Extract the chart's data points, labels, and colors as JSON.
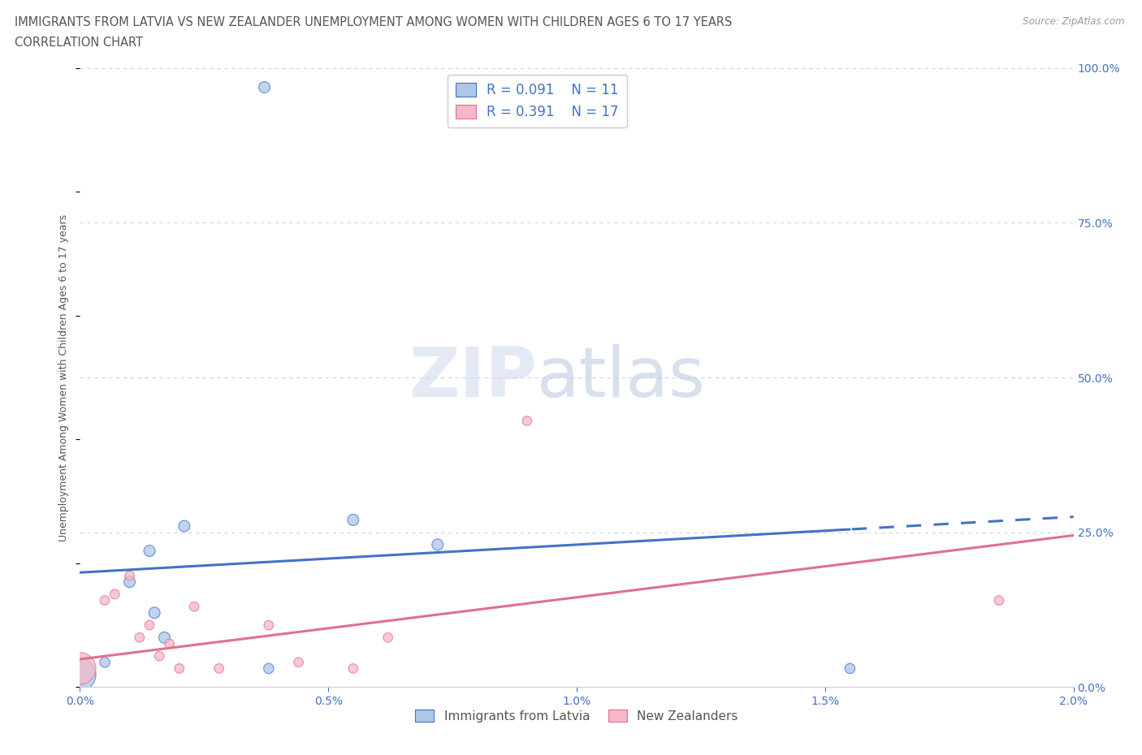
{
  "title_line1": "IMMIGRANTS FROM LATVIA VS NEW ZEALANDER UNEMPLOYMENT AMONG WOMEN WITH CHILDREN AGES 6 TO 17 YEARS",
  "title_line2": "CORRELATION CHART",
  "source": "Source: ZipAtlas.com",
  "ylabel": "Unemployment Among Women with Children Ages 6 to 17 years",
  "ytick_vals": [
    0.0,
    25.0,
    50.0,
    75.0,
    100.0
  ],
  "xlim": [
    0.0,
    2.0
  ],
  "ylim": [
    0.0,
    100.0
  ],
  "blue_fill": "#aec6e8",
  "blue_edge": "#4472c4",
  "pink_fill": "#f4b8c8",
  "pink_edge": "#e07090",
  "blue_R": 0.091,
  "blue_N": 11,
  "pink_R": 0.391,
  "pink_N": 17,
  "legend_label_blue": "Immigrants from Latvia",
  "legend_label_pink": "New Zealanders",
  "watermark_zip": "ZIP",
  "watermark_atlas": "atlas",
  "background_color": "#ffffff",
  "grid_color": "#c8d4e8",
  "axis_label_color": "#4472c4",
  "title_color": "#555555",
  "blue_line_intercept": 18.5,
  "blue_line_slope": 4.5,
  "blue_line_solid_end": 1.55,
  "blue_line_dashed_end": 2.0,
  "pink_line_intercept": 4.5,
  "pink_line_slope": 10.0,
  "pink_line_end": 2.0,
  "blue_pts_x": [
    0.0,
    0.05,
    0.1,
    0.14,
    0.15,
    0.17,
    0.21,
    0.55,
    0.72,
    1.55,
    0.38
  ],
  "blue_pts_y": [
    2.0,
    4.0,
    17.0,
    22.0,
    12.0,
    8.0,
    26.0,
    27.0,
    23.0,
    3.0,
    3.0
  ],
  "blue_pts_size": [
    800,
    80,
    100,
    100,
    100,
    100,
    100,
    100,
    100,
    80,
    80
  ],
  "pink_pts_x": [
    0.0,
    0.05,
    0.07,
    0.1,
    0.12,
    0.14,
    0.16,
    0.18,
    0.2,
    0.23,
    0.28,
    0.38,
    0.44,
    0.55,
    0.62,
    0.9,
    1.85
  ],
  "pink_pts_y": [
    3.0,
    14.0,
    15.0,
    18.0,
    8.0,
    10.0,
    5.0,
    7.0,
    3.0,
    13.0,
    3.0,
    10.0,
    4.0,
    3.0,
    8.0,
    43.0,
    14.0
  ],
  "pink_pts_size": [
    800,
    70,
    70,
    70,
    70,
    70,
    70,
    70,
    70,
    70,
    70,
    70,
    70,
    70,
    70,
    70,
    70
  ],
  "blue_outlier_x": 0.37,
  "blue_outlier_y": 97.0,
  "blue_outlier_size": 100
}
